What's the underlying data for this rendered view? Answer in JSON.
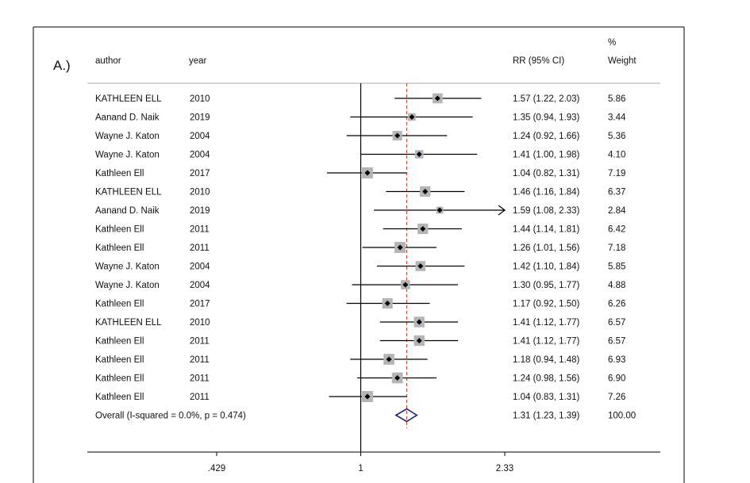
{
  "panel_label": "A.)",
  "headers": {
    "author": "author",
    "year": "year",
    "rr": "RR (95% CI)",
    "weight_pct": "%",
    "weight": "Weight"
  },
  "chart_data": {
    "type": "forest",
    "x_scale": "log",
    "xlim": [
      0.429,
      2.33
    ],
    "x_ticks": [
      0.429,
      1,
      2.33
    ],
    "x_tick_labels": [
      ".429",
      "1",
      "2.33"
    ],
    "null_line": 1,
    "overall_line": 1.31,
    "studies": [
      {
        "author": "KATHLEEN ELL",
        "year": "2010",
        "rr": 1.57,
        "lo": 1.22,
        "hi": 2.03,
        "ci_text": "1.57 (1.22, 2.03)",
        "weight": "5.86"
      },
      {
        "author": "Aanand D. Naik",
        "year": "2019",
        "rr": 1.35,
        "lo": 0.94,
        "hi": 1.93,
        "ci_text": "1.35 (0.94, 1.93)",
        "weight": "3.44"
      },
      {
        "author": "Wayne J. Katon",
        "year": "2004",
        "rr": 1.24,
        "lo": 0.92,
        "hi": 1.66,
        "ci_text": "1.24 (0.92, 1.66)",
        "weight": "5.36"
      },
      {
        "author": "Wayne J. Katon",
        "year": "2004",
        "rr": 1.41,
        "lo": 1.0,
        "hi": 1.98,
        "ci_text": "1.41 (1.00, 1.98)",
        "weight": "4.10"
      },
      {
        "author": "Kathleen Ell",
        "year": "2017",
        "rr": 1.04,
        "lo": 0.82,
        "hi": 1.31,
        "ci_text": "1.04 (0.82, 1.31)",
        "weight": "7.19"
      },
      {
        "author": "KATHLEEN ELL",
        "year": "2010",
        "rr": 1.46,
        "lo": 1.16,
        "hi": 1.84,
        "ci_text": "1.46 (1.16, 1.84)",
        "weight": "6.37"
      },
      {
        "author": "Aanand D. Naik",
        "year": "2019",
        "rr": 1.59,
        "lo": 1.08,
        "hi": 2.33,
        "ci_text": "1.59 (1.08, 2.33)",
        "weight": "2.84",
        "arrow": true
      },
      {
        "author": "Kathleen Ell",
        "year": "2011",
        "rr": 1.44,
        "lo": 1.14,
        "hi": 1.81,
        "ci_text": "1.44 (1.14, 1.81)",
        "weight": "6.42"
      },
      {
        "author": "Kathleen Ell",
        "year": "2011",
        "rr": 1.26,
        "lo": 1.01,
        "hi": 1.56,
        "ci_text": "1.26 (1.01, 1.56)",
        "weight": "7.18"
      },
      {
        "author": "Wayne J. Katon",
        "year": "2004",
        "rr": 1.42,
        "lo": 1.1,
        "hi": 1.84,
        "ci_text": "1.42 (1.10, 1.84)",
        "weight": "5.85"
      },
      {
        "author": "Wayne J. Katon",
        "year": "2004",
        "rr": 1.3,
        "lo": 0.95,
        "hi": 1.77,
        "ci_text": "1.30 (0.95, 1.77)",
        "weight": "4.88"
      },
      {
        "author": "Kathleen Ell",
        "year": "2017",
        "rr": 1.17,
        "lo": 0.92,
        "hi": 1.5,
        "ci_text": "1.17 (0.92, 1.50)",
        "weight": "6.26"
      },
      {
        "author": "KATHLEEN ELL",
        "year": "2010",
        "rr": 1.41,
        "lo": 1.12,
        "hi": 1.77,
        "ci_text": "1.41 (1.12, 1.77)",
        "weight": "6.57"
      },
      {
        "author": "Kathleen Ell",
        "year": "2011",
        "rr": 1.41,
        "lo": 1.12,
        "hi": 1.77,
        "ci_text": "1.41 (1.12, 1.77)",
        "weight": "6.57"
      },
      {
        "author": "Kathleen Ell",
        "year": "2011",
        "rr": 1.18,
        "lo": 0.94,
        "hi": 1.48,
        "ci_text": "1.18 (0.94, 1.48)",
        "weight": "6.93"
      },
      {
        "author": "Kathleen Ell",
        "year": "2011",
        "rr": 1.24,
        "lo": 0.98,
        "hi": 1.56,
        "ci_text": "1.24 (0.98, 1.56)",
        "weight": "6.90"
      },
      {
        "author": "Kathleen Ell",
        "year": "2011",
        "rr": 1.04,
        "lo": 0.83,
        "hi": 1.31,
        "ci_text": "1.04 (0.83, 1.31)",
        "weight": "7.26"
      }
    ],
    "overall": {
      "label": "Overall  (I-squared = 0.0%, p = 0.474)",
      "rr": 1.31,
      "lo": 1.23,
      "hi": 1.39,
      "ci_text": "1.31 (1.23, 1.39)",
      "weight": "100.00"
    },
    "colors": {
      "ci_line": "#000000",
      "weight_box": "#b5b5b5",
      "point": "#000000",
      "overall_diamond": "#1f1f6e",
      "overall_line": "#c0392b",
      "frame": "#000000",
      "header_rule": "#aaaaaa"
    }
  }
}
